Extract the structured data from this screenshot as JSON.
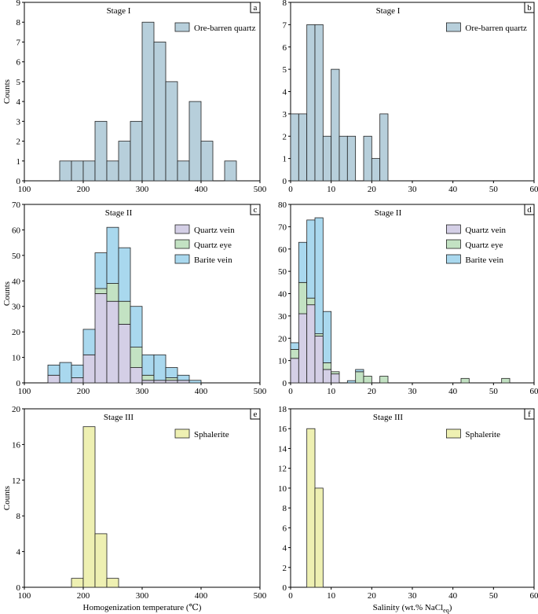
{
  "chart_data": [
    {
      "id": "a",
      "type": "bar",
      "title": "Stage I",
      "panel_label": "a",
      "ylabel": "Counts",
      "xlabel": "",
      "xlim": [
        100,
        500
      ],
      "ylim": [
        0,
        9
      ],
      "bin_width": 20,
      "xticks": [
        100,
        200,
        300,
        400,
        500
      ],
      "yticks": [
        0,
        1,
        2,
        3,
        4,
        5,
        6,
        7,
        8,
        9
      ],
      "legend_position": "top-right",
      "series": [
        {
          "name": "Ore-barren quartz",
          "color": "#b7cfdb",
          "bins": [
            [
              160,
              1
            ],
            [
              180,
              1
            ],
            [
              200,
              1
            ],
            [
              220,
              3
            ],
            [
              240,
              1
            ],
            [
              260,
              2
            ],
            [
              280,
              3
            ],
            [
              300,
              8
            ],
            [
              320,
              7
            ],
            [
              340,
              5
            ],
            [
              360,
              1
            ],
            [
              380,
              4
            ],
            [
              400,
              2
            ],
            [
              440,
              1
            ]
          ]
        }
      ]
    },
    {
      "id": "b",
      "type": "bar",
      "title": "Stage I",
      "panel_label": "b",
      "ylabel": "",
      "xlabel": "",
      "xlim": [
        0,
        60
      ],
      "ylim": [
        0,
        8
      ],
      "bin_width": 2,
      "xticks": [
        0,
        10,
        20,
        30,
        40,
        50,
        60
      ],
      "yticks": [
        0,
        1,
        2,
        3,
        4,
        5,
        6,
        7,
        8
      ],
      "legend_position": "top-right",
      "series": [
        {
          "name": "Ore-barren quartz",
          "color": "#b7cfdb",
          "bins": [
            [
              0,
              3
            ],
            [
              2,
              3
            ],
            [
              4,
              7
            ],
            [
              6,
              7
            ],
            [
              8,
              2
            ],
            [
              10,
              5
            ],
            [
              12,
              2
            ],
            [
              14,
              2
            ],
            [
              18,
              2
            ],
            [
              20,
              1
            ],
            [
              22,
              3
            ]
          ]
        }
      ]
    },
    {
      "id": "c",
      "type": "bar",
      "title": "Stage II",
      "panel_label": "c",
      "stacked": true,
      "ylabel": "Counts",
      "xlabel": "",
      "xlim": [
        100,
        500
      ],
      "ylim": [
        0,
        70
      ],
      "bin_width": 20,
      "xticks": [
        100,
        200,
        300,
        400,
        500
      ],
      "yticks": [
        0,
        10,
        20,
        30,
        40,
        50,
        60,
        70
      ],
      "legend_position": "top-right",
      "series": [
        {
          "name": "Quartz vein",
          "color": "#d4cfe6",
          "bins": [
            [
              140,
              3
            ],
            [
              180,
              2
            ],
            [
              200,
              11
            ],
            [
              220,
              35
            ],
            [
              240,
              32
            ],
            [
              260,
              23
            ],
            [
              280,
              6
            ],
            [
              300,
              1
            ],
            [
              320,
              1
            ],
            [
              340,
              1
            ],
            [
              360,
              1
            ]
          ]
        },
        {
          "name": "Quartz eye",
          "color": "#c3e2c3",
          "bins": [
            [
              220,
              2
            ],
            [
              240,
              7
            ],
            [
              260,
              9
            ],
            [
              280,
              8
            ],
            [
              300,
              2
            ],
            [
              340,
              1
            ]
          ]
        },
        {
          "name": "Barite vein",
          "color": "#a9d8ee",
          "bins": [
            [
              140,
              4
            ],
            [
              160,
              8
            ],
            [
              180,
              5
            ],
            [
              200,
              10
            ],
            [
              220,
              14
            ],
            [
              240,
              22
            ],
            [
              260,
              21
            ],
            [
              280,
              16
            ],
            [
              300,
              8
            ],
            [
              320,
              10
            ],
            [
              340,
              4
            ],
            [
              360,
              2
            ],
            [
              380,
              1
            ]
          ]
        }
      ]
    },
    {
      "id": "d",
      "type": "bar",
      "title": "Stage II",
      "panel_label": "d",
      "stacked": true,
      "ylabel": "",
      "xlabel": "",
      "xlim": [
        0,
        60
      ],
      "ylim": [
        0,
        80
      ],
      "bin_width": 2,
      "xticks": [
        0,
        10,
        20,
        30,
        40,
        50,
        60
      ],
      "yticks": [
        0,
        10,
        20,
        30,
        40,
        50,
        60,
        70,
        80
      ],
      "legend_position": "top-right",
      "series": [
        {
          "name": "Quartz vein",
          "color": "#d4cfe6",
          "bins": [
            [
              0,
              11
            ],
            [
              2,
              31
            ],
            [
              4,
              35
            ],
            [
              6,
              21
            ],
            [
              8,
              6
            ],
            [
              10,
              4
            ]
          ]
        },
        {
          "name": "Quartz eye",
          "color": "#c3e2c3",
          "bins": [
            [
              0,
              4
            ],
            [
              2,
              14
            ],
            [
              4,
              3
            ],
            [
              6,
              1
            ],
            [
              8,
              3
            ],
            [
              10,
              1
            ],
            [
              16,
              5
            ],
            [
              18,
              3
            ],
            [
              22,
              3
            ],
            [
              42,
              2
            ],
            [
              52,
              2
            ]
          ]
        },
        {
          "name": "Barite vein",
          "color": "#a9d8ee",
          "bins": [
            [
              0,
              3
            ],
            [
              2,
              18
            ],
            [
              4,
              35
            ],
            [
              6,
              52
            ],
            [
              8,
              23
            ],
            [
              14,
              1
            ],
            [
              16,
              1
            ]
          ]
        }
      ]
    },
    {
      "id": "e",
      "type": "bar",
      "title": "Stage III",
      "panel_label": "e",
      "ylabel": "Counts",
      "xlabel": "Homogenization temperature (℃)",
      "xlim": [
        100,
        500
      ],
      "ylim": [
        0,
        20
      ],
      "bin_width": 20,
      "xticks": [
        100,
        200,
        300,
        400,
        500
      ],
      "yticks": [
        0,
        4,
        8,
        12,
        16,
        20
      ],
      "legend_position": "top-right",
      "series": [
        {
          "name": "Sphalerite",
          "color": "#eef0b2",
          "bins": [
            [
              180,
              1
            ],
            [
              200,
              18
            ],
            [
              220,
              6
            ],
            [
              240,
              1
            ]
          ]
        }
      ]
    },
    {
      "id": "f",
      "type": "bar",
      "title": "Stage III",
      "panel_label": "f",
      "ylabel": "",
      "xlabel": "Salinity (wt.% NaCl",
      "xlabel_subscript": "eq",
      "xlabel_suffix": ")",
      "xlim": [
        0,
        60
      ],
      "ylim": [
        0,
        18
      ],
      "bin_width": 2,
      "xticks": [
        0,
        10,
        20,
        30,
        40,
        50,
        60
      ],
      "yticks": [
        0,
        2,
        4,
        6,
        8,
        10,
        12,
        14,
        16,
        18
      ],
      "legend_position": "top-right",
      "series": [
        {
          "name": "Sphalerite",
          "color": "#eef0b2",
          "bins": [
            [
              4,
              16
            ],
            [
              6,
              10
            ]
          ]
        }
      ]
    }
  ]
}
